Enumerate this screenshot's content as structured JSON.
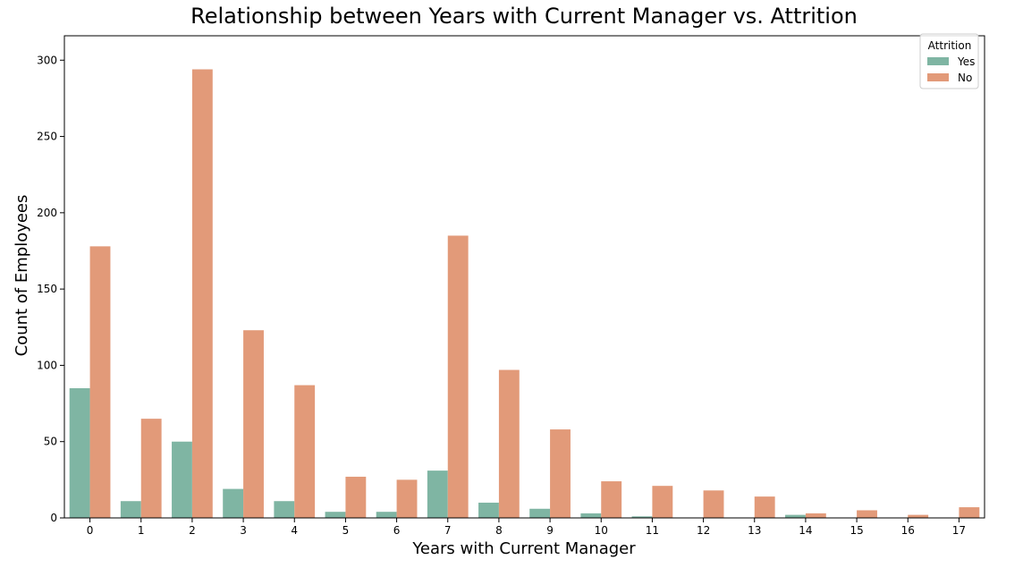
{
  "chart_data": {
    "type": "bar",
    "title": "Relationship between Years with Current Manager vs. Attrition",
    "xlabel": "Years with Current Manager",
    "ylabel": "Count of Employees",
    "categories": [
      "0",
      "1",
      "2",
      "3",
      "4",
      "5",
      "6",
      "7",
      "8",
      "9",
      "10",
      "11",
      "12",
      "13",
      "14",
      "15",
      "16",
      "17"
    ],
    "series": [
      {
        "name": "Yes",
        "color": "#7fb5a3",
        "values": [
          85,
          11,
          50,
          19,
          11,
          4,
          4,
          31,
          10,
          6,
          3,
          1,
          0,
          0,
          2,
          0,
          0,
          0
        ]
      },
      {
        "name": "No",
        "color": "#e29a79",
        "values": [
          178,
          65,
          294,
          123,
          87,
          27,
          25,
          185,
          97,
          58,
          24,
          21,
          18,
          14,
          3,
          5,
          2,
          7
        ]
      }
    ],
    "ylim": [
      0,
      300
    ],
    "yticks": [
      0,
      50,
      100,
      150,
      200,
      250,
      300
    ],
    "grid": false,
    "legend": {
      "title": "Attrition",
      "placement": "top-right"
    }
  }
}
